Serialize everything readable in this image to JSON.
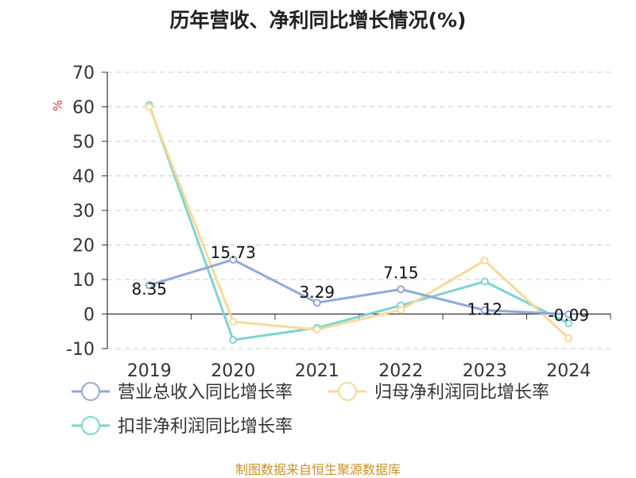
{
  "chart_data": {
    "type": "line",
    "title": "历年营收、净利同比增长情况(%)",
    "ylabel": "%",
    "xlabel": "",
    "categories": [
      "2019",
      "2020",
      "2021",
      "2022",
      "2023",
      "2024"
    ],
    "ylim": [
      -10,
      70
    ],
    "yticks": [
      -10,
      0,
      10,
      20,
      30,
      40,
      50,
      60,
      70
    ],
    "grid": true,
    "legend_position": "bottom",
    "series": [
      {
        "name": "营业总收入同比增长率",
        "color": "#8fa9d9",
        "values": [
          8.35,
          15.73,
          3.29,
          7.15,
          1.12,
          -0.09
        ],
        "labels": [
          "8.35",
          "15.73",
          "3.29",
          "7.15",
          "1.12",
          "-0.09"
        ]
      },
      {
        "name": "归母净利润同比增长率",
        "color": "#f8d99a",
        "values": [
          60.0,
          -2.2,
          -4.5,
          1.2,
          15.5,
          -7.0
        ]
      },
      {
        "name": "扣非净利润同比增长率",
        "color": "#7fd3d1",
        "values": [
          60.5,
          -7.5,
          -4.0,
          2.5,
          9.4,
          -2.7
        ]
      }
    ]
  },
  "source": "制图数据来自恒生聚源数据库"
}
